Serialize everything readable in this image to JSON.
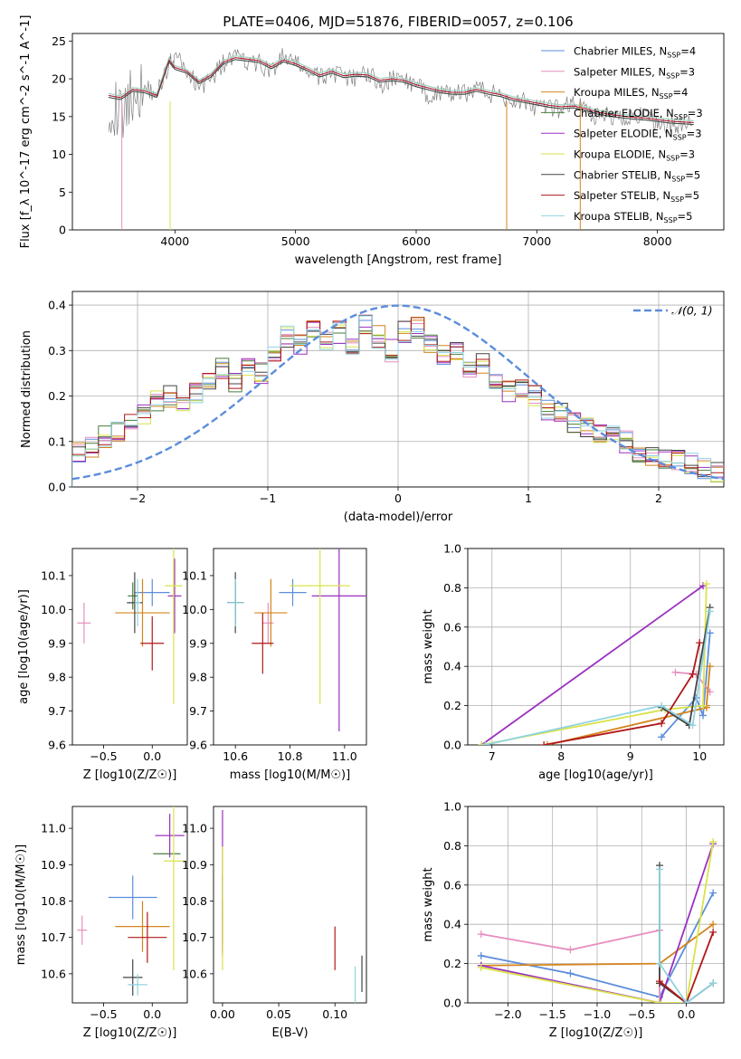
{
  "figure_title": "PLATE=0406, MJD=51876, FIBERID=0057, z=0.106",
  "models": [
    {
      "name": "Chabrier MILES",
      "nssp": "4",
      "color": "#5b8ddc"
    },
    {
      "name": "Salpeter MILES",
      "nssp": "3",
      "color": "#e68fbf"
    },
    {
      "name": "Kroupa MILES",
      "nssp": "4",
      "color": "#d4841c"
    },
    {
      "name": "Chabrier ELODIE",
      "nssp": "3",
      "color": "#4a7d3a"
    },
    {
      "name": "Salpeter ELODIE",
      "nssp": "3",
      "color": "#9b30c0"
    },
    {
      "name": "Kroupa ELODIE",
      "nssp": "3",
      "color": "#d9e34a"
    },
    {
      "name": "Chabrier STELIB",
      "nssp": "5",
      "color": "#444444"
    },
    {
      "name": "Salpeter STELIB",
      "nssp": "5",
      "color": "#b01818"
    },
    {
      "name": "Kroupa STELIB",
      "nssp": "5",
      "color": "#8fd3e0"
    }
  ],
  "chart_data": [
    {
      "id": "spectrum",
      "type": "line",
      "title": "PLATE=0406, MJD=51876, FIBERID=0057, z=0.106",
      "xlabel": "wavelength [Angstrom, rest frame]",
      "ylabel": "Flux [f_λ 10^-17 erg cm^-2 s^-1 A^-1]",
      "xlim": [
        3150,
        8550
      ],
      "ylim": [
        0,
        26
      ],
      "xticks": [
        4000,
        5000,
        6000,
        7000,
        8000
      ],
      "yticks": [
        0,
        5,
        10,
        15,
        20,
        25
      ],
      "legend_position": "top-right",
      "data_series": {
        "name": "data",
        "color": "#808080",
        "x": [
          3450,
          3550,
          3650,
          3750,
          3850,
          3950,
          4000,
          4100,
          4200,
          4300,
          4400,
          4500,
          4600,
          4700,
          4800,
          4900,
          5000,
          5100,
          5200,
          5300,
          5400,
          5500,
          5600,
          5700,
          5800,
          5900,
          6000,
          6100,
          6200,
          6300,
          6400,
          6500,
          6600,
          6700,
          6800,
          6900,
          7000,
          7100,
          7200,
          7300,
          7400,
          7500,
          7600,
          7700,
          7800,
          7900,
          8000,
          8100,
          8200,
          8300
        ],
        "y": [
          17,
          15,
          18,
          19,
          18,
          22,
          23,
          21,
          19,
          20,
          22,
          23,
          22,
          22,
          21,
          23,
          22,
          21,
          20,
          21,
          20,
          20,
          21,
          19,
          20,
          20,
          19,
          18,
          18,
          18,
          18,
          19,
          18,
          18,
          17,
          17,
          16,
          16,
          16,
          17,
          16,
          15,
          15,
          15,
          15,
          15,
          14,
          14,
          14,
          14
        ]
      },
      "model_curve": {
        "x": [
          3450,
          3550,
          3650,
          3750,
          3850,
          3950,
          4000,
          4100,
          4200,
          4300,
          4400,
          4500,
          4600,
          4700,
          4800,
          4900,
          5000,
          5100,
          5200,
          5300,
          5400,
          5500,
          5600,
          5700,
          5800,
          5900,
          6000,
          6100,
          6200,
          6300,
          6400,
          6500,
          6600,
          6700,
          6800,
          6900,
          7000,
          7100,
          7200,
          7300,
          7400,
          7500,
          7600,
          7700,
          7800,
          7900,
          8000,
          8100,
          8200,
          8300
        ],
        "y": [
          17.8,
          17.5,
          18.6,
          18.4,
          17.8,
          22.5,
          21.5,
          21,
          19.6,
          20.5,
          22.2,
          22.8,
          22.6,
          22.4,
          21.6,
          22.5,
          22,
          21.3,
          20.5,
          21,
          20.4,
          20.6,
          20.5,
          19.8,
          20,
          19.8,
          19.2,
          18.8,
          18.4,
          18.2,
          18.2,
          18.6,
          18.2,
          17.9,
          17.4,
          17.1,
          16.8,
          16.5,
          16.3,
          16.4,
          16.1,
          15.6,
          15.3,
          15.1,
          14.9,
          14.8,
          14.6,
          14.4,
          14.3,
          14.2
        ]
      }
    },
    {
      "id": "residuals",
      "type": "line",
      "xlabel": "(data-model)/error",
      "ylabel": "Normed distribution",
      "xlim": [
        -2.5,
        2.5
      ],
      "ylim": [
        0,
        0.43
      ],
      "xticks": [
        -2,
        -1,
        0,
        1,
        2
      ],
      "yticks": [
        0.0,
        0.1,
        0.2,
        0.3,
        0.4
      ],
      "grid": true,
      "legend_position": "top-right",
      "reference_curve": {
        "name": "𝒩(0, 1)",
        "color": "#5b8ddc",
        "mean": 0,
        "sigma": 1
      },
      "bin_width": 0.1,
      "histogram_centers": [
        -2.45,
        -2.35,
        -2.25,
        -2.15,
        -2.05,
        -1.95,
        -1.85,
        -1.75,
        -1.65,
        -1.55,
        -1.45,
        -1.35,
        -1.25,
        -1.15,
        -1.05,
        -0.95,
        -0.85,
        -0.75,
        -0.65,
        -0.55,
        -0.45,
        -0.35,
        -0.25,
        -0.15,
        -0.05,
        0.05,
        0.15,
        0.25,
        0.35,
        0.45,
        0.55,
        0.65,
        0.75,
        0.85,
        0.95,
        1.05,
        1.15,
        1.25,
        1.35,
        1.45,
        1.55,
        1.65,
        1.75,
        1.85,
        1.95,
        2.05,
        2.15,
        2.25,
        2.35,
        2.45
      ],
      "histogram_values": [
        0.08,
        0.09,
        0.11,
        0.12,
        0.14,
        0.16,
        0.19,
        0.2,
        0.18,
        0.21,
        0.24,
        0.26,
        0.23,
        0.27,
        0.25,
        0.3,
        0.33,
        0.31,
        0.35,
        0.32,
        0.34,
        0.31,
        0.36,
        0.33,
        0.3,
        0.34,
        0.35,
        0.31,
        0.29,
        0.3,
        0.26,
        0.27,
        0.24,
        0.21,
        0.22,
        0.2,
        0.17,
        0.16,
        0.14,
        0.13,
        0.12,
        0.11,
        0.1,
        0.08,
        0.07,
        0.06,
        0.06,
        0.05,
        0.04,
        0.03
      ]
    },
    {
      "id": "age-vs-Z",
      "type": "scatter",
      "xlabel": "Z [log10(Z/Z☉)]",
      "ylabel": "age  [log10(age/yr)]",
      "xlim": [
        -0.82,
        0.36
      ],
      "ylim": [
        9.6,
        10.18
      ],
      "xticks": [
        -0.5,
        0.0
      ],
      "yticks": [
        9.6,
        9.7,
        9.8,
        9.9,
        10.0,
        10.1
      ],
      "points": [
        {
          "model": 0,
          "x": 0.0,
          "y": 10.05,
          "xerr": 0.18,
          "yerr": 0.04
        },
        {
          "model": 1,
          "x": -0.7,
          "y": 9.96,
          "xerr": 0.07,
          "yerr": 0.06
        },
        {
          "model": 2,
          "x": -0.1,
          "y": 9.99,
          "xerr": 0.28,
          "yerr": 0.1
        },
        {
          "model": 3,
          "x": -0.2,
          "y": 10.04,
          "xerr": 0.05,
          "yerr": 0.04
        },
        {
          "model": 4,
          "x": 0.23,
          "y": 10.04,
          "xerr": 0.07,
          "yerr": 0.11
        },
        {
          "model": 5,
          "x": 0.22,
          "y": 10.07,
          "xerr": 0.09,
          "yerr": 0.35
        },
        {
          "model": 6,
          "x": -0.18,
          "y": 10.02,
          "xerr": 0.08,
          "yerr": 0.09
        },
        {
          "model": 7,
          "x": 0.0,
          "y": 9.9,
          "xerr": 0.12,
          "yerr": 0.08
        },
        {
          "model": 8,
          "x": -0.15,
          "y": 10.02,
          "xerr": 0.03,
          "yerr": 0.07
        }
      ]
    },
    {
      "id": "age-vs-mass",
      "type": "scatter",
      "xlabel": "mass [log10(M/M☉)]",
      "xlim": [
        10.52,
        11.08
      ],
      "ylim": [
        9.6,
        10.18
      ],
      "xticks": [
        10.6,
        10.8,
        11.0
      ],
      "yticks": [
        9.6,
        9.7,
        9.8,
        9.9,
        10.0,
        10.1
      ],
      "points": [
        {
          "model": 0,
          "x": 10.81,
          "y": 10.05,
          "xerr": 0.05,
          "yerr": 0.04
        },
        {
          "model": 1,
          "x": 10.72,
          "y": 9.96,
          "xerr": 0.02,
          "yerr": 0.06
        },
        {
          "model": 2,
          "x": 10.73,
          "y": 9.99,
          "xerr": 0.06,
          "yerr": 0.1
        },
        {
          "model": 3,
          "x": 10.6,
          "y": 10.02,
          "xerr": 0.03,
          "yerr": 0.06
        },
        {
          "model": 4,
          "x": 10.98,
          "y": 10.04,
          "xerr": 0.1,
          "yerr": 0.4
        },
        {
          "model": 5,
          "x": 10.91,
          "y": 10.07,
          "xerr": 0.11,
          "yerr": 0.35
        },
        {
          "model": 6,
          "x": 10.6,
          "y": 10.02,
          "xerr": 0.03,
          "yerr": 0.09
        },
        {
          "model": 7,
          "x": 10.7,
          "y": 9.9,
          "xerr": 0.04,
          "yerr": 0.09
        },
        {
          "model": 8,
          "x": 10.6,
          "y": 10.02,
          "xerr": 0.03,
          "yerr": 0.07
        }
      ]
    },
    {
      "id": "massweight-vs-age",
      "type": "line",
      "xlabel": "age  [log10(age/yr)]",
      "ylabel": "mass weight",
      "xlim": [
        6.65,
        10.35
      ],
      "ylim": [
        0,
        1.0
      ],
      "xticks": [
        7,
        8,
        9,
        10
      ],
      "yticks": [
        0.0,
        0.2,
        0.4,
        0.6,
        0.8,
        1.0
      ],
      "grid": true,
      "series": [
        {
          "model": 0,
          "x": [
            9.45,
            9.95,
            10.05,
            10.15
          ],
          "y": [
            0.04,
            0.24,
            0.15,
            0.57
          ]
        },
        {
          "model": 1,
          "x": [
            9.65,
            9.95,
            10.15
          ],
          "y": [
            0.37,
            0.36,
            0.27
          ]
        },
        {
          "model": 2,
          "x": [
            7.8,
            10.1,
            10.1,
            10.15
          ],
          "y": [
            0.0,
            0.19,
            0.2,
            0.4
          ]
        },
        {
          "model": 4,
          "x": [
            6.85,
            10.05
          ],
          "y": [
            0.0,
            0.81
          ]
        },
        {
          "model": 5,
          "x": [
            6.85,
            9.5,
            10.05,
            10.1
          ],
          "y": [
            0.0,
            0.18,
            0.2,
            0.82
          ]
        },
        {
          "model": 6,
          "x": [
            9.45,
            9.85,
            10.15
          ],
          "y": [
            0.19,
            0.1,
            0.7
          ]
        },
        {
          "model": 7,
          "x": [
            7.75,
            9.45,
            9.9,
            10.0
          ],
          "y": [
            0.0,
            0.11,
            0.36,
            0.52
          ]
        },
        {
          "model": 8,
          "x": [
            6.9,
            9.45,
            9.9,
            10.15
          ],
          "y": [
            0.0,
            0.2,
            0.1,
            0.68
          ]
        }
      ]
    },
    {
      "id": "mass-vs-Z",
      "type": "scatter",
      "xlabel": "Z [log10(Z/Z☉)]",
      "ylabel": "mass [log10(M/M☉)]",
      "xlim": [
        -0.82,
        0.36
      ],
      "ylim": [
        10.52,
        11.06
      ],
      "xticks": [
        -0.5,
        0.0
      ],
      "yticks": [
        10.6,
        10.7,
        10.8,
        10.9,
        11.0
      ],
      "points": [
        {
          "model": 0,
          "x": -0.2,
          "y": 10.81,
          "xerr": 0.25,
          "yerr": 0.06
        },
        {
          "model": 1,
          "x": -0.72,
          "y": 10.72,
          "xerr": 0.05,
          "yerr": 0.04
        },
        {
          "model": 2,
          "x": -0.1,
          "y": 10.73,
          "xerr": 0.28,
          "yerr": 0.07
        },
        {
          "model": 3,
          "x": 0.15,
          "y": 10.93,
          "xerr": 0.14,
          "yerr": 0.0
        },
        {
          "model": 4,
          "x": 0.18,
          "y": 10.98,
          "xerr": 0.15,
          "yerr": 0.06
        },
        {
          "model": 5,
          "x": 0.22,
          "y": 10.91,
          "xerr": 0.1,
          "yerr": 0.3
        },
        {
          "model": 6,
          "x": -0.2,
          "y": 10.59,
          "xerr": 0.1,
          "yerr": 0.05
        },
        {
          "model": 7,
          "x": -0.05,
          "y": 10.7,
          "xerr": 0.2,
          "yerr": 0.07
        },
        {
          "model": 8,
          "x": -0.15,
          "y": 10.57,
          "xerr": 0.1,
          "yerr": 0.03
        }
      ]
    },
    {
      "id": "mass-vs-ebv",
      "type": "scatter",
      "xlabel": "E(B-V)",
      "xlim": [
        -0.008,
        0.128
      ],
      "ylim": [
        10.52,
        11.06
      ],
      "xticks": [
        0.0,
        0.05,
        0.1
      ],
      "yticks": [
        10.6,
        10.7,
        10.8,
        10.9,
        11.0
      ],
      "points": [
        {
          "model": 0,
          "x": 0.0,
          "y": 10.81,
          "xerr": 0,
          "yerr": 0.06
        },
        {
          "model": 1,
          "x": 0.0,
          "y": 10.72,
          "xerr": 0,
          "yerr": 0.04
        },
        {
          "model": 2,
          "x": 0.0,
          "y": 10.73,
          "xerr": 0,
          "yerr": 0.07
        },
        {
          "model": 4,
          "x": 0.0,
          "y": 10.85,
          "xerr": 0,
          "yerr": 0.2
        },
        {
          "model": 5,
          "x": 0.0,
          "y": 10.78,
          "xerr": 0,
          "yerr": 0.17
        },
        {
          "model": 6,
          "x": 0.124,
          "y": 10.6,
          "xerr": 0,
          "yerr": 0.05
        },
        {
          "model": 7,
          "x": 0.1,
          "y": 10.67,
          "xerr": 0,
          "yerr": 0.06
        },
        {
          "model": 8,
          "x": 0.118,
          "y": 10.57,
          "xerr": 0,
          "yerr": 0.05
        }
      ]
    },
    {
      "id": "massweight-vs-Z",
      "type": "line",
      "xlabel": "Z [log10(Z/Z☉)]",
      "ylabel": "mass weight",
      "xlim": [
        -2.45,
        0.42
      ],
      "ylim": [
        0,
        1.0
      ],
      "xticks": [
        -2.0,
        -1.5,
        -1.0,
        -0.5,
        0.0
      ],
      "yticks": [
        0.0,
        0.2,
        0.4,
        0.6,
        0.8,
        1.0
      ],
      "grid": true,
      "series": [
        {
          "model": 0,
          "x": [
            -2.3,
            -1.3,
            -0.3,
            0.3
          ],
          "y": [
            0.24,
            0.15,
            0.03,
            0.56
          ]
        },
        {
          "model": 1,
          "x": [
            -2.3,
            -1.3,
            -0.3,
            -0.3
          ],
          "y": [
            0.35,
            0.27,
            0.37,
            0.0
          ]
        },
        {
          "model": 2,
          "x": [
            -2.3,
            -0.3,
            0.3
          ],
          "y": [
            0.19,
            0.2,
            0.4
          ]
        },
        {
          "model": 4,
          "x": [
            -2.3,
            -0.3,
            0.3
          ],
          "y": [
            0.19,
            0.0,
            0.81
          ]
        },
        {
          "model": 5,
          "x": [
            -2.3,
            -0.3,
            0.0,
            0.3
          ],
          "y": [
            0.18,
            0.0,
            0.0,
            0.82
          ]
        },
        {
          "model": 6,
          "x": [
            -0.3,
            -0.3,
            0.0,
            0.3
          ],
          "y": [
            0.7,
            0.1,
            0.0,
            0.1
          ]
        },
        {
          "model": 7,
          "x": [
            -0.3,
            0.0,
            0.3
          ],
          "y": [
            0.11,
            0.0,
            0.36
          ]
        },
        {
          "model": 8,
          "x": [
            -0.3,
            -0.3,
            0.0,
            0.3
          ],
          "y": [
            0.68,
            0.2,
            0.0,
            0.1
          ]
        }
      ]
    }
  ]
}
